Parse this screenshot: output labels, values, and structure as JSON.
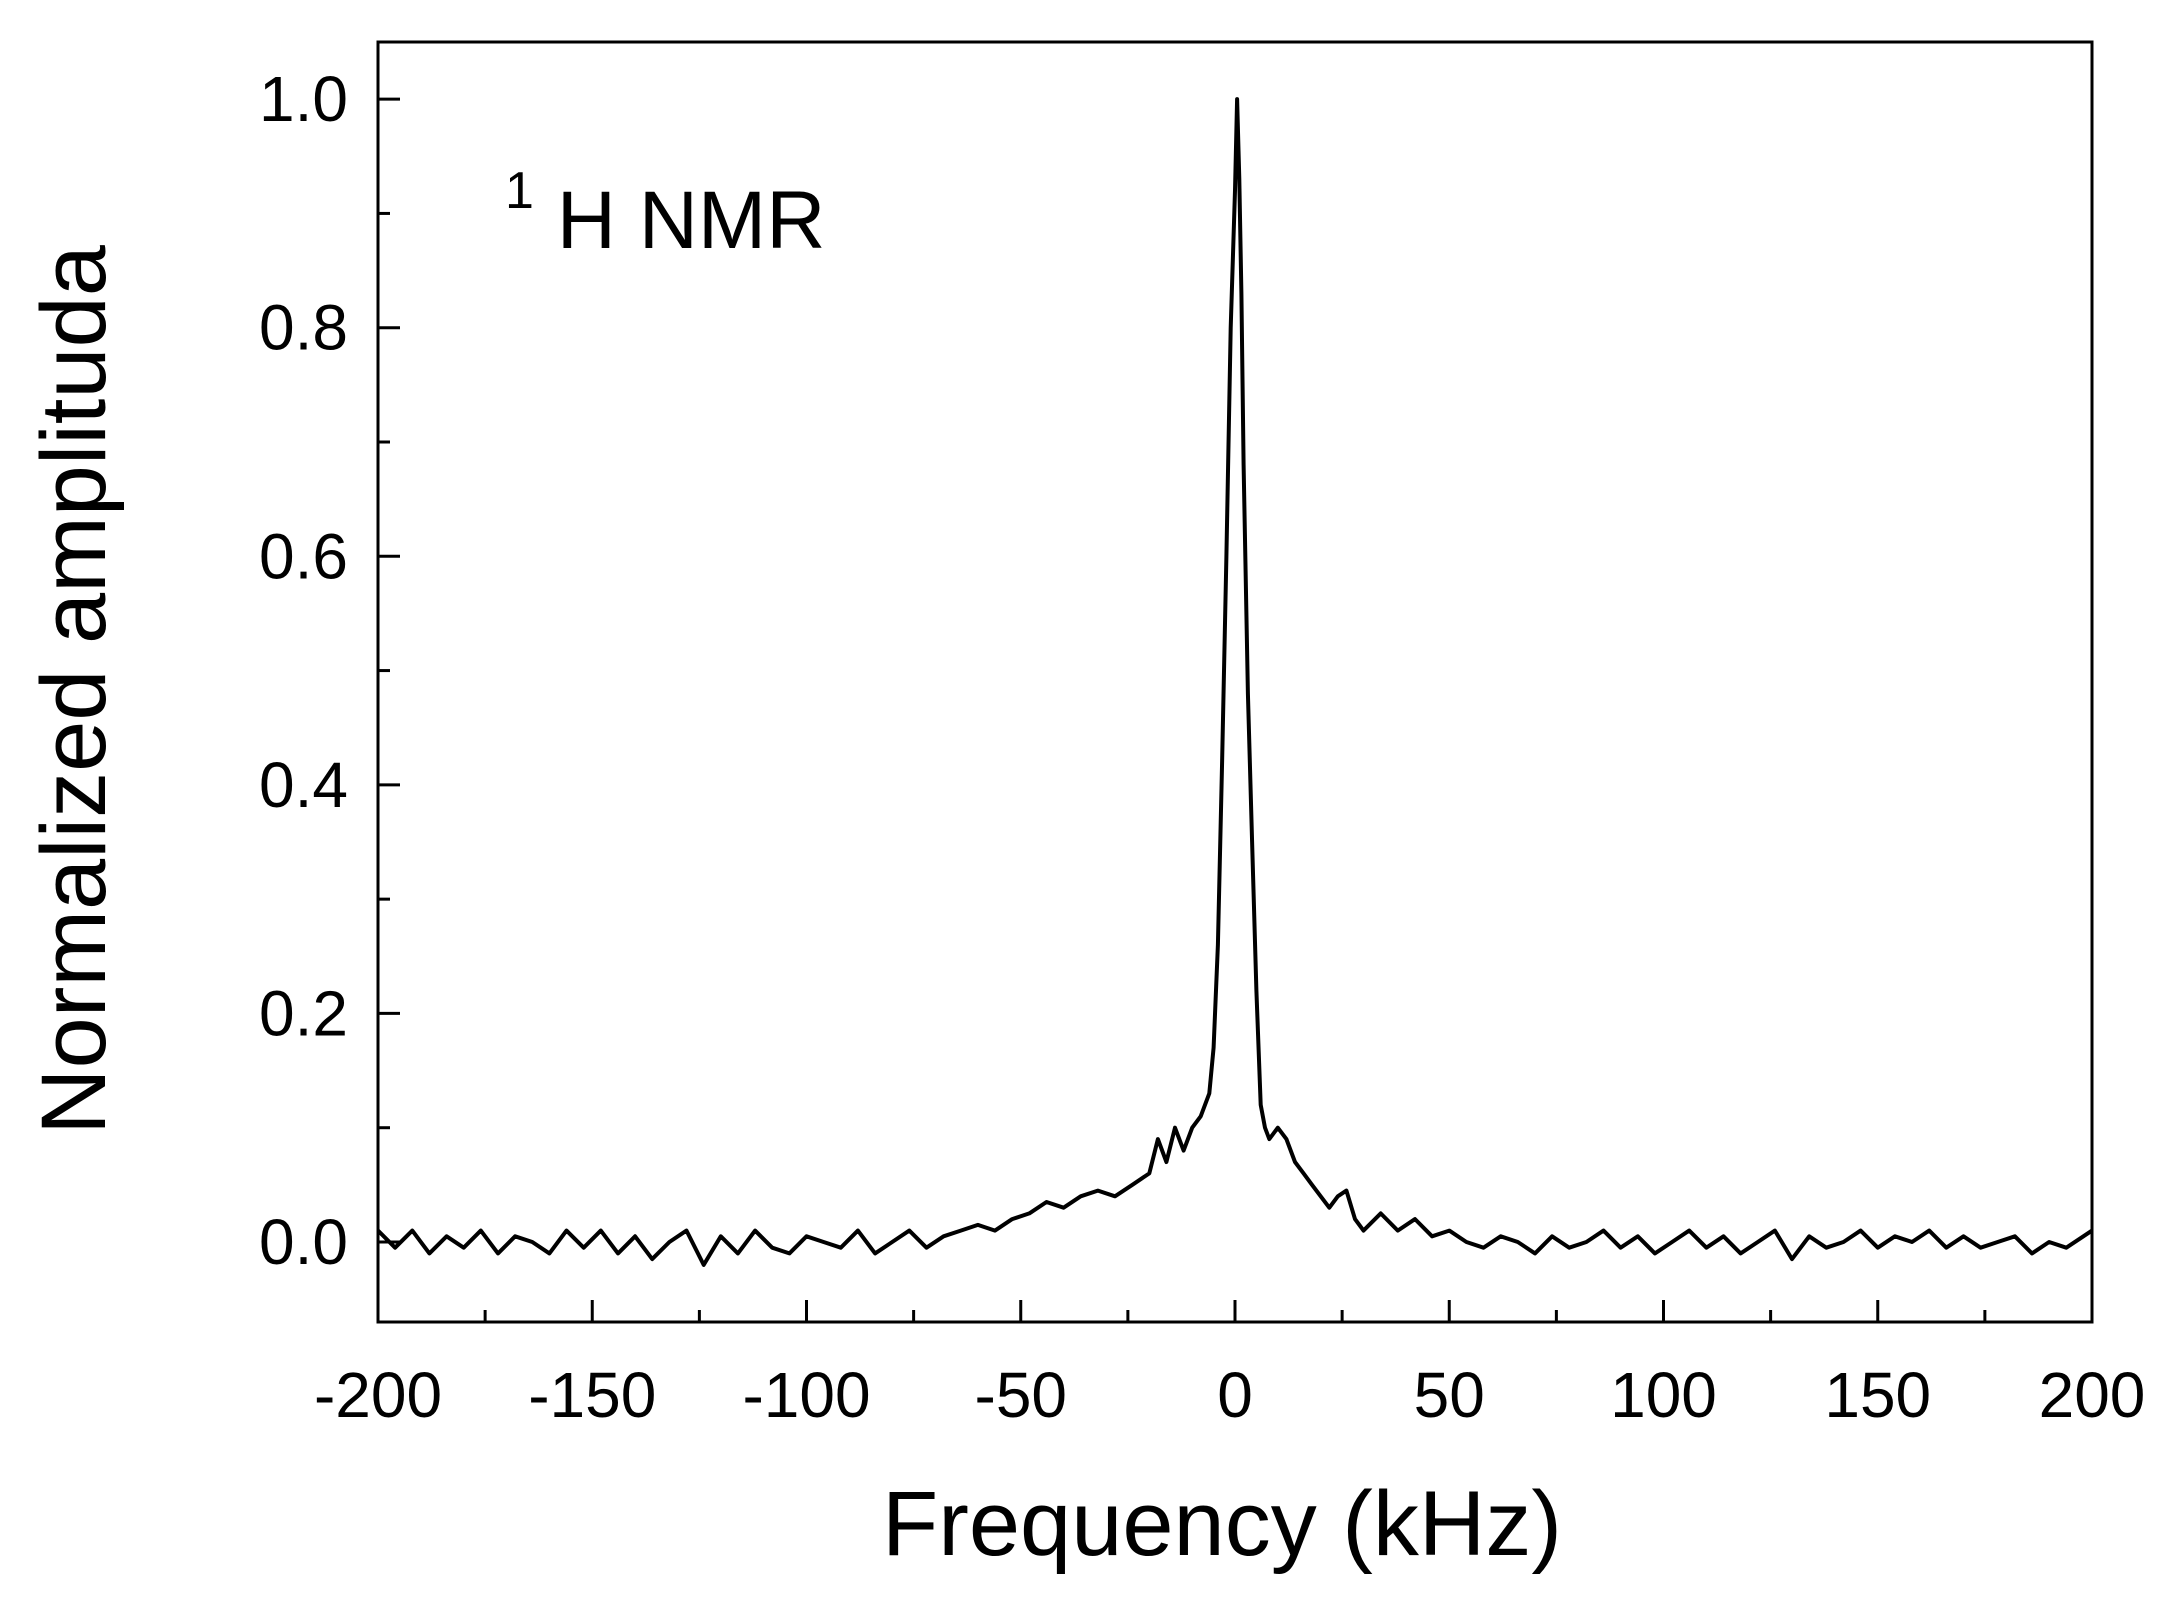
{
  "chart_data": {
    "type": "line",
    "title": "",
    "annotation": {
      "superscript": "1",
      "text": "H NMR"
    },
    "xlabel": "Frequency (kHz)",
    "ylabel": "Normalized amplituda",
    "xlim": [
      -200,
      200
    ],
    "ylim": [
      -0.07,
      1.05
    ],
    "x_ticks": [
      -200,
      -150,
      -100,
      -50,
      0,
      50,
      100,
      150,
      200
    ],
    "x_tick_labels": [
      "-200",
      "-150",
      "-100",
      "-50",
      "0",
      "50",
      "100",
      "150",
      "200"
    ],
    "y_ticks": [
      0.0,
      0.2,
      0.4,
      0.6,
      0.8,
      1.0
    ],
    "y_tick_labels": [
      "0.0",
      "0.2",
      "0.4",
      "0.6",
      "0.8",
      "1.0"
    ],
    "grid": false,
    "legend": "none",
    "line_color": "#000000",
    "series": [
      {
        "x": [
          -200,
          -196,
          -192,
          -188,
          -184,
          -180,
          -176,
          -172,
          -168,
          -164,
          -160,
          -156,
          -152,
          -148,
          -144,
          -140,
          -136,
          -132,
          -128,
          -124,
          -120,
          -116,
          -112,
          -108,
          -104,
          -100,
          -96,
          -92,
          -88,
          -84,
          -80,
          -76,
          -72,
          -68,
          -64,
          -60,
          -56,
          -52,
          -48,
          -44,
          -40,
          -36,
          -32,
          -28,
          -24,
          -20,
          -18,
          -16,
          -14,
          -12,
          -10,
          -8,
          -6,
          -5,
          -4,
          -3,
          -2,
          -1,
          0,
          0.5,
          1,
          1.5,
          2,
          3,
          4,
          5,
          6,
          7,
          8,
          10,
          12,
          14,
          16,
          18,
          20,
          22,
          24,
          26,
          28,
          30,
          34,
          38,
          42,
          46,
          50,
          54,
          58,
          62,
          66,
          70,
          74,
          78,
          82,
          86,
          90,
          94,
          98,
          102,
          106,
          110,
          114,
          118,
          122,
          126,
          130,
          134,
          138,
          142,
          146,
          150,
          154,
          158,
          162,
          166,
          170,
          174,
          178,
          182,
          186,
          190,
          194,
          198,
          200
        ],
        "y": [
          0.01,
          -0.005,
          0.01,
          -0.01,
          0.005,
          -0.005,
          0.01,
          -0.01,
          0.005,
          0.0,
          -0.01,
          0.01,
          -0.005,
          0.01,
          -0.01,
          0.005,
          -0.015,
          0.0,
          0.01,
          -0.02,
          0.005,
          -0.01,
          0.01,
          -0.005,
          -0.01,
          0.005,
          0.0,
          -0.005,
          0.01,
          -0.01,
          0.0,
          0.01,
          -0.005,
          0.005,
          0.01,
          0.015,
          0.01,
          0.02,
          0.025,
          0.035,
          0.03,
          0.04,
          0.045,
          0.04,
          0.05,
          0.06,
          0.09,
          0.07,
          0.1,
          0.08,
          0.1,
          0.11,
          0.13,
          0.17,
          0.26,
          0.42,
          0.6,
          0.8,
          0.92,
          1.0,
          0.93,
          0.83,
          0.68,
          0.48,
          0.35,
          0.22,
          0.12,
          0.1,
          0.09,
          0.1,
          0.09,
          0.07,
          0.06,
          0.05,
          0.04,
          0.03,
          0.04,
          0.045,
          0.02,
          0.01,
          0.025,
          0.01,
          0.02,
          0.005,
          0.01,
          0.0,
          -0.005,
          0.005,
          0.0,
          -0.01,
          0.005,
          -0.005,
          0.0,
          0.01,
          -0.005,
          0.005,
          -0.01,
          0.0,
          0.01,
          -0.005,
          0.005,
          -0.01,
          0.0,
          0.01,
          -0.015,
          0.005,
          -0.005,
          0.0,
          0.01,
          -0.005,
          0.005,
          0.0,
          0.01,
          -0.005,
          0.005,
          -0.005,
          0.0,
          0.005,
          -0.01,
          0.0,
          -0.005,
          0.005,
          0.01
        ]
      }
    ]
  }
}
